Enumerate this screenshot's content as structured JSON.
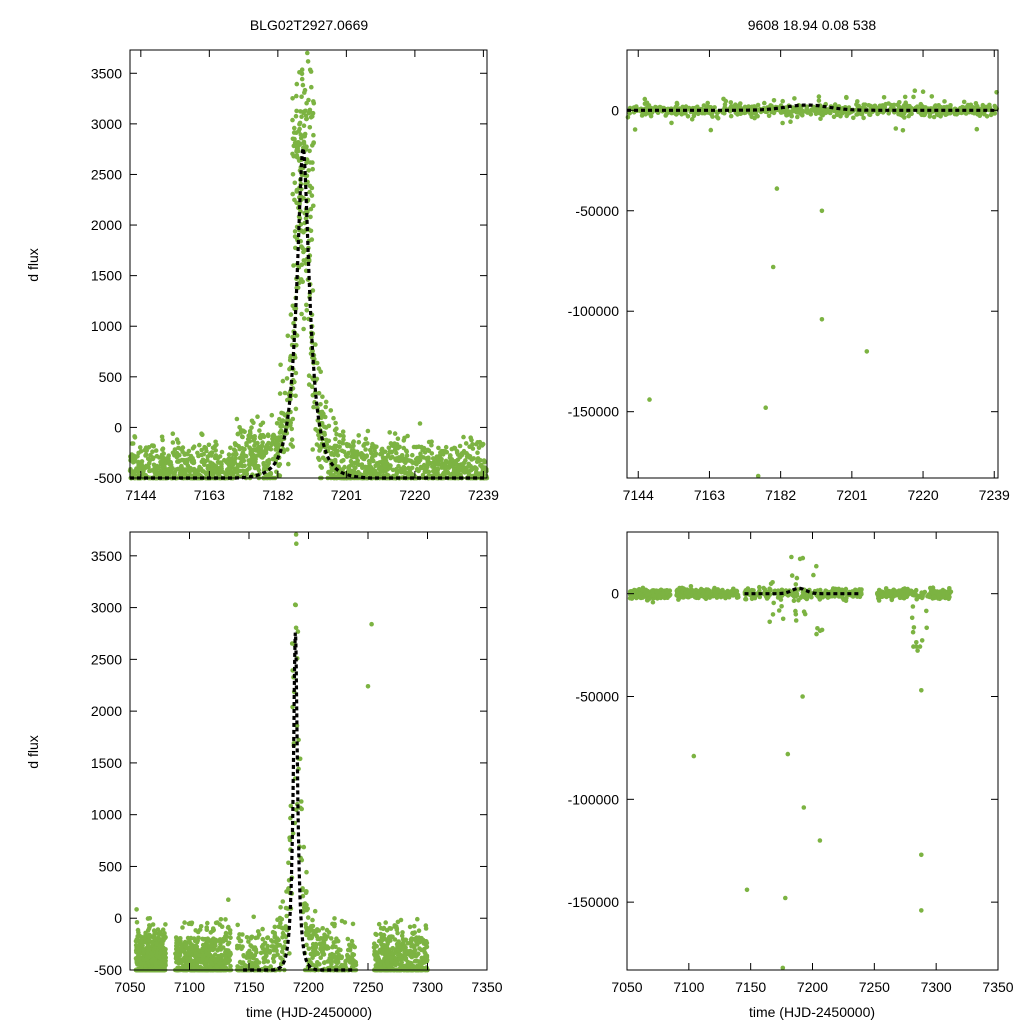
{
  "chart_data": [
    {
      "type": "scatter",
      "title": "BLG02T2927.0669",
      "xlabel": "",
      "ylabel": "d flux",
      "xlim": [
        7141,
        7240
      ],
      "ylim": [
        -500,
        3730
      ],
      "xticks": [
        7144,
        7163,
        7182,
        7201,
        7220,
        7239
      ],
      "yticks": [
        -500,
        0,
        500,
        1000,
        1500,
        2000,
        2500,
        3000,
        3500
      ],
      "series": [
        {
          "name": "observations",
          "style": "points",
          "x_range": [
            7141,
            7239
          ],
          "y_range": [
            -500,
            3730
          ]
        },
        {
          "name": "model",
          "style": "dashed-line",
          "peak": {
            "x": 7189,
            "y": 2760
          },
          "baseline": -510,
          "tE": 4.5
        }
      ]
    },
    {
      "type": "scatter",
      "title": "9608  18.94  0.08  538",
      "xlabel": "",
      "ylabel": "",
      "xlim": [
        7141,
        7240
      ],
      "ylim": [
        -183000,
        30000
      ],
      "xticks": [
        7144,
        7163,
        7182,
        7201,
        7220,
        7239
      ],
      "yticks": [
        -150000,
        -100000,
        -50000,
        0
      ],
      "series": [
        {
          "name": "observations",
          "style": "points",
          "outliers": [
            [
              7147,
              -144000
            ],
            [
              7176,
              -182000
            ],
            [
              7178,
              -148000
            ],
            [
              7180,
              -78000
            ],
            [
              7181,
              -39000
            ],
            [
              7193,
              -50000
            ],
            [
              7193,
              -104000
            ],
            [
              7205,
              -120000
            ]
          ]
        },
        {
          "name": "model",
          "style": "dashed-line",
          "peak": {
            "x": 7189,
            "y": 2600
          },
          "baseline": 0
        }
      ]
    },
    {
      "type": "scatter",
      "title": "",
      "xlabel": "time (HJD-2450000)",
      "ylabel": "d flux",
      "xlim": [
        7050,
        7350
      ],
      "ylim": [
        -500,
        3730
      ],
      "xticks": [
        7050,
        7100,
        7150,
        7200,
        7250,
        7300,
        7350
      ],
      "yticks": [
        -500,
        0,
        500,
        1000,
        1500,
        2000,
        2500,
        3000,
        3500
      ],
      "series": [
        {
          "name": "observations",
          "style": "points",
          "outliers": [
            [
              7253,
              2840
            ],
            [
              7250,
              2240
            ]
          ]
        },
        {
          "name": "model",
          "style": "dashed-line",
          "peak": {
            "x": 7189,
            "y": 2760
          },
          "baseline": -510,
          "tE": 4.5
        }
      ]
    },
    {
      "type": "scatter",
      "title": "",
      "xlabel": "time (HJD-2450000)",
      "ylabel": "",
      "xlim": [
        7050,
        7350
      ],
      "ylim": [
        -183000,
        30000
      ],
      "xticks": [
        7050,
        7100,
        7150,
        7200,
        7250,
        7300,
        7350
      ],
      "yticks": [
        -150000,
        -100000,
        -50000,
        0
      ],
      "series": [
        {
          "name": "observations",
          "style": "points",
          "outliers": [
            [
              7104,
              -79000
            ],
            [
              7147,
              -144000
            ],
            [
              7176,
              -182000
            ],
            [
              7178,
              -148000
            ],
            [
              7180,
              -78000
            ],
            [
              7192,
              -50000
            ],
            [
              7193,
              -104000
            ],
            [
              7206,
              -120000
            ],
            [
              7288,
              -127000
            ],
            [
              7288,
              -154000
            ],
            [
              7288,
              -47000
            ]
          ]
        },
        {
          "name": "model",
          "style": "dashed-line",
          "peak": {
            "x": 7189,
            "y": 2600
          },
          "baseline": 0,
          "x_range": [
            7145,
            7238
          ]
        }
      ]
    }
  ]
}
